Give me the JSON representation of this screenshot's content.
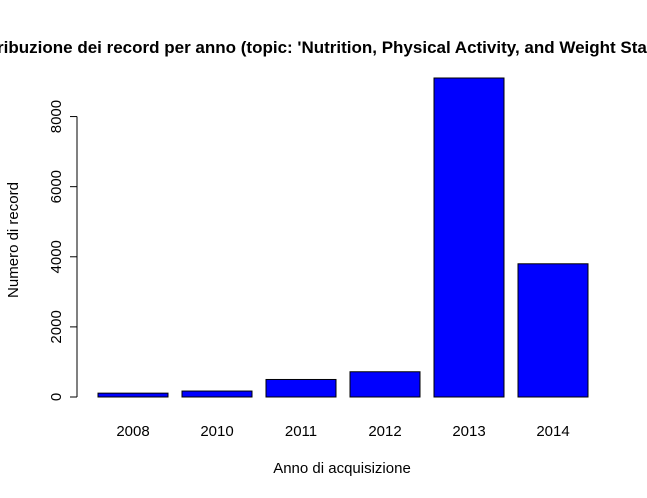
{
  "chart_data": {
    "type": "bar",
    "title": "Distribuzione dei record per anno (topic: 'Nutrition, Physical Activity, and Weight Status')",
    "xlabel": "Anno di acquisizione",
    "ylabel": "Numero di record",
    "categories": [
      "2008",
      "2010",
      "2011",
      "2012",
      "2013",
      "2014"
    ],
    "values": [
      110,
      170,
      500,
      720,
      9100,
      3800
    ],
    "yticks": [
      0,
      2000,
      4000,
      6000,
      8000
    ],
    "ylim": [
      0,
      9100
    ],
    "bar_color": "#0000ff",
    "grid": false,
    "legend": "none"
  }
}
